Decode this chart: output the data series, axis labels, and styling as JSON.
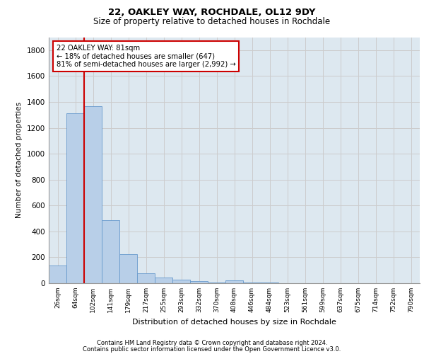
{
  "title_line1": "22, OAKLEY WAY, ROCHDALE, OL12 9DY",
  "title_line2": "Size of property relative to detached houses in Rochdale",
  "xlabel": "Distribution of detached houses by size in Rochdale",
  "ylabel": "Number of detached properties",
  "categories": [
    "26sqm",
    "64sqm",
    "102sqm",
    "141sqm",
    "179sqm",
    "217sqm",
    "255sqm",
    "293sqm",
    "332sqm",
    "370sqm",
    "408sqm",
    "446sqm",
    "484sqm",
    "523sqm",
    "561sqm",
    "599sqm",
    "637sqm",
    "675sqm",
    "714sqm",
    "752sqm",
    "790sqm"
  ],
  "values": [
    135,
    1310,
    1365,
    485,
    225,
    75,
    45,
    28,
    15,
    5,
    20,
    5,
    5,
    0,
    0,
    0,
    0,
    0,
    0,
    0,
    0
  ],
  "bar_color": "#b8cfe8",
  "bar_edge_color": "#6699cc",
  "grid_color": "#cccccc",
  "bg_color": "#dde8f0",
  "vline_x": 1.5,
  "vline_color": "#cc0000",
  "annotation_text": "22 OAKLEY WAY: 81sqm\n← 18% of detached houses are smaller (647)\n81% of semi-detached houses are larger (2,992) →",
  "annotation_box_color": "#cc0000",
  "footer_line1": "Contains HM Land Registry data © Crown copyright and database right 2024.",
  "footer_line2": "Contains public sector information licensed under the Open Government Licence v3.0.",
  "ylim": [
    0,
    1900
  ],
  "yticks": [
    0,
    200,
    400,
    600,
    800,
    1000,
    1200,
    1400,
    1600,
    1800
  ]
}
